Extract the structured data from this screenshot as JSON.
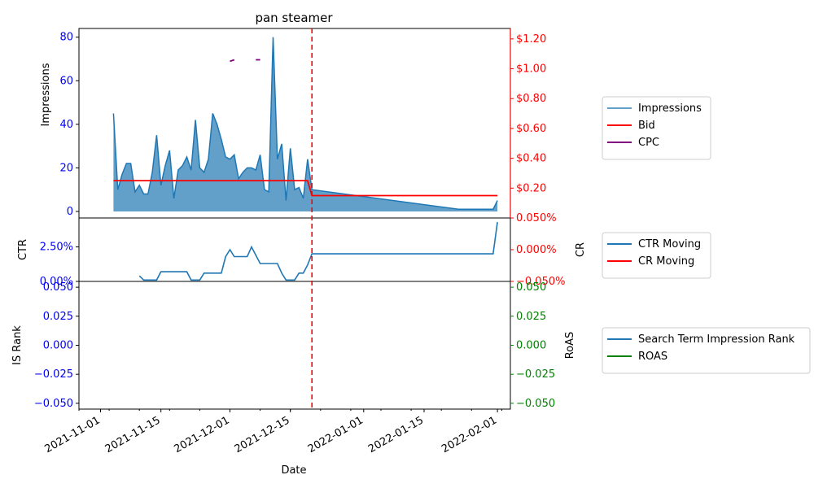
{
  "title": "pan steamer",
  "xlabel": "Date",
  "x_ticks": [
    "2021-11-01",
    "2021-11-15",
    "2021-12-01",
    "2021-12-15",
    "2022-01-01",
    "2022-01-15",
    "2022-02-01"
  ],
  "colors": {
    "impressions": "#1f77b4",
    "bid": "#ff0000",
    "cpc": "#800080",
    "left_axis": "#0000ff",
    "right_axis_top": "#ff0000",
    "right_axis_bottom": "#008000",
    "vline": "#ff0000"
  },
  "chart_data": [
    {
      "type": "area",
      "panel": "top",
      "ylabel": "Impressions",
      "ylim": [
        -3,
        84
      ],
      "y_ticks": [
        0,
        20,
        40,
        60,
        80
      ],
      "y2_ticks": [
        "$0.20",
        "$0.40",
        "$0.60",
        "$0.80",
        "$1.00",
        "$1.20"
      ],
      "y2lim": [
        0.0,
        1.27
      ],
      "y2_tick_values": [
        0.2,
        0.4,
        0.6,
        0.8,
        1.0,
        1.2
      ],
      "legend": {
        "placement": "right",
        "entries": [
          "Impressions",
          "Bid",
          "CPC"
        ]
      },
      "vline_date": "2021-12-20",
      "series": [
        {
          "name": "Impressions",
          "type": "area",
          "x": [
            "2021-11-04",
            "2021-11-05",
            "2021-11-06",
            "2021-11-07",
            "2021-11-08",
            "2021-11-09",
            "2021-11-10",
            "2021-11-11",
            "2021-11-12",
            "2021-11-13",
            "2021-11-14",
            "2021-11-15",
            "2021-11-16",
            "2021-11-17",
            "2021-11-18",
            "2021-11-19",
            "2021-11-20",
            "2021-11-21",
            "2021-11-22",
            "2021-11-23",
            "2021-11-24",
            "2021-11-25",
            "2021-11-26",
            "2021-11-27",
            "2021-11-28",
            "2021-11-29",
            "2021-11-30",
            "2021-12-01",
            "2021-12-02",
            "2021-12-03",
            "2021-12-04",
            "2021-12-05",
            "2021-12-06",
            "2021-12-07",
            "2021-12-08",
            "2021-12-09",
            "2021-12-10",
            "2021-12-11",
            "2021-12-12",
            "2021-12-13",
            "2021-12-14",
            "2021-12-15",
            "2021-12-16",
            "2021-12-17",
            "2021-12-18",
            "2021-12-19",
            "2021-12-20",
            "2022-01-23",
            "2022-01-31",
            "2022-02-01"
          ],
          "values": [
            45,
            10,
            17,
            22,
            22,
            9,
            12,
            8,
            8,
            18,
            35,
            12,
            21,
            28,
            6,
            19,
            21,
            25,
            19,
            42,
            20,
            18,
            24,
            45,
            40,
            33,
            25,
            24,
            26,
            15,
            18,
            20,
            20,
            19,
            26,
            10,
            9,
            80,
            24,
            31,
            5,
            29,
            10,
            11,
            6,
            24,
            10,
            1,
            1,
            5
          ]
        },
        {
          "name": "Bid",
          "type": "line",
          "x": [
            "2021-11-04",
            "2021-12-19",
            "2021-12-20",
            "2022-02-01"
          ],
          "values": [
            0.25,
            0.25,
            0.15,
            0.15
          ]
        },
        {
          "name": "CPC",
          "type": "line",
          "segments": [
            {
              "x": [
                "2021-12-01",
                "2021-12-02"
              ],
              "values": [
                1.05,
                1.06
              ]
            },
            {
              "x": [
                "2021-12-07",
                "2021-12-08"
              ],
              "values": [
                1.06,
                1.06
              ]
            }
          ]
        }
      ]
    },
    {
      "type": "line",
      "panel": "middle",
      "ylabel": "CTR",
      "y2label": "CR",
      "ylim": [
        0.0,
        0.046
      ],
      "y_ticks": [
        "0.00%",
        "2.50%"
      ],
      "y_tick_values": [
        0.0,
        0.025
      ],
      "y2_ticks": [
        "−0.050%",
        "0.000%",
        "0.050%"
      ],
      "y2lim": [
        -0.05,
        0.05
      ],
      "y2_tick_values": [
        -0.05,
        0.0,
        0.05
      ],
      "legend": {
        "placement": "right",
        "entries": [
          "CTR Moving",
          "CR Moving"
        ]
      },
      "series": [
        {
          "name": "CTR Moving",
          "x": [
            "2021-11-10",
            "2021-11-11",
            "2021-11-14",
            "2021-11-15",
            "2021-11-21",
            "2021-11-22",
            "2021-11-24",
            "2021-11-25",
            "2021-11-29",
            "2021-11-30",
            "2021-12-01",
            "2021-12-02",
            "2021-12-05",
            "2021-12-06",
            "2021-12-08",
            "2021-12-12",
            "2021-12-13",
            "2021-12-14",
            "2021-12-16",
            "2021-12-17",
            "2021-12-18",
            "2021-12-19",
            "2021-12-20",
            "2022-01-31",
            "2022-02-01"
          ],
          "values": [
            0.004,
            0.001,
            0.001,
            0.007,
            0.007,
            0.001,
            0.001,
            0.006,
            0.006,
            0.018,
            0.023,
            0.018,
            0.018,
            0.025,
            0.013,
            0.013,
            0.006,
            0.001,
            0.001,
            0.006,
            0.006,
            0.012,
            0.02,
            0.02,
            0.043
          ]
        },
        {
          "name": "CR Moving",
          "x": [],
          "values": []
        }
      ]
    },
    {
      "type": "line",
      "panel": "bottom",
      "ylabel": "IS Rank",
      "y2label": "RoAS",
      "ylim": [
        -0.055,
        0.055
      ],
      "y_ticks": [
        "−0.050",
        "−0.025",
        "0.000",
        "0.025",
        "0.050"
      ],
      "y_tick_values": [
        -0.05,
        -0.025,
        0.0,
        0.025,
        0.05
      ],
      "y2_ticks": [
        "−0.050",
        "−0.025",
        "0.000",
        "0.025",
        "0.050"
      ],
      "legend": {
        "placement": "right",
        "entries": [
          "Search Term Impression Rank",
          "ROAS"
        ]
      },
      "series": [
        {
          "name": "Search Term Impression Rank",
          "x": [],
          "values": []
        },
        {
          "name": "ROAS",
          "x": [],
          "values": []
        }
      ]
    }
  ]
}
